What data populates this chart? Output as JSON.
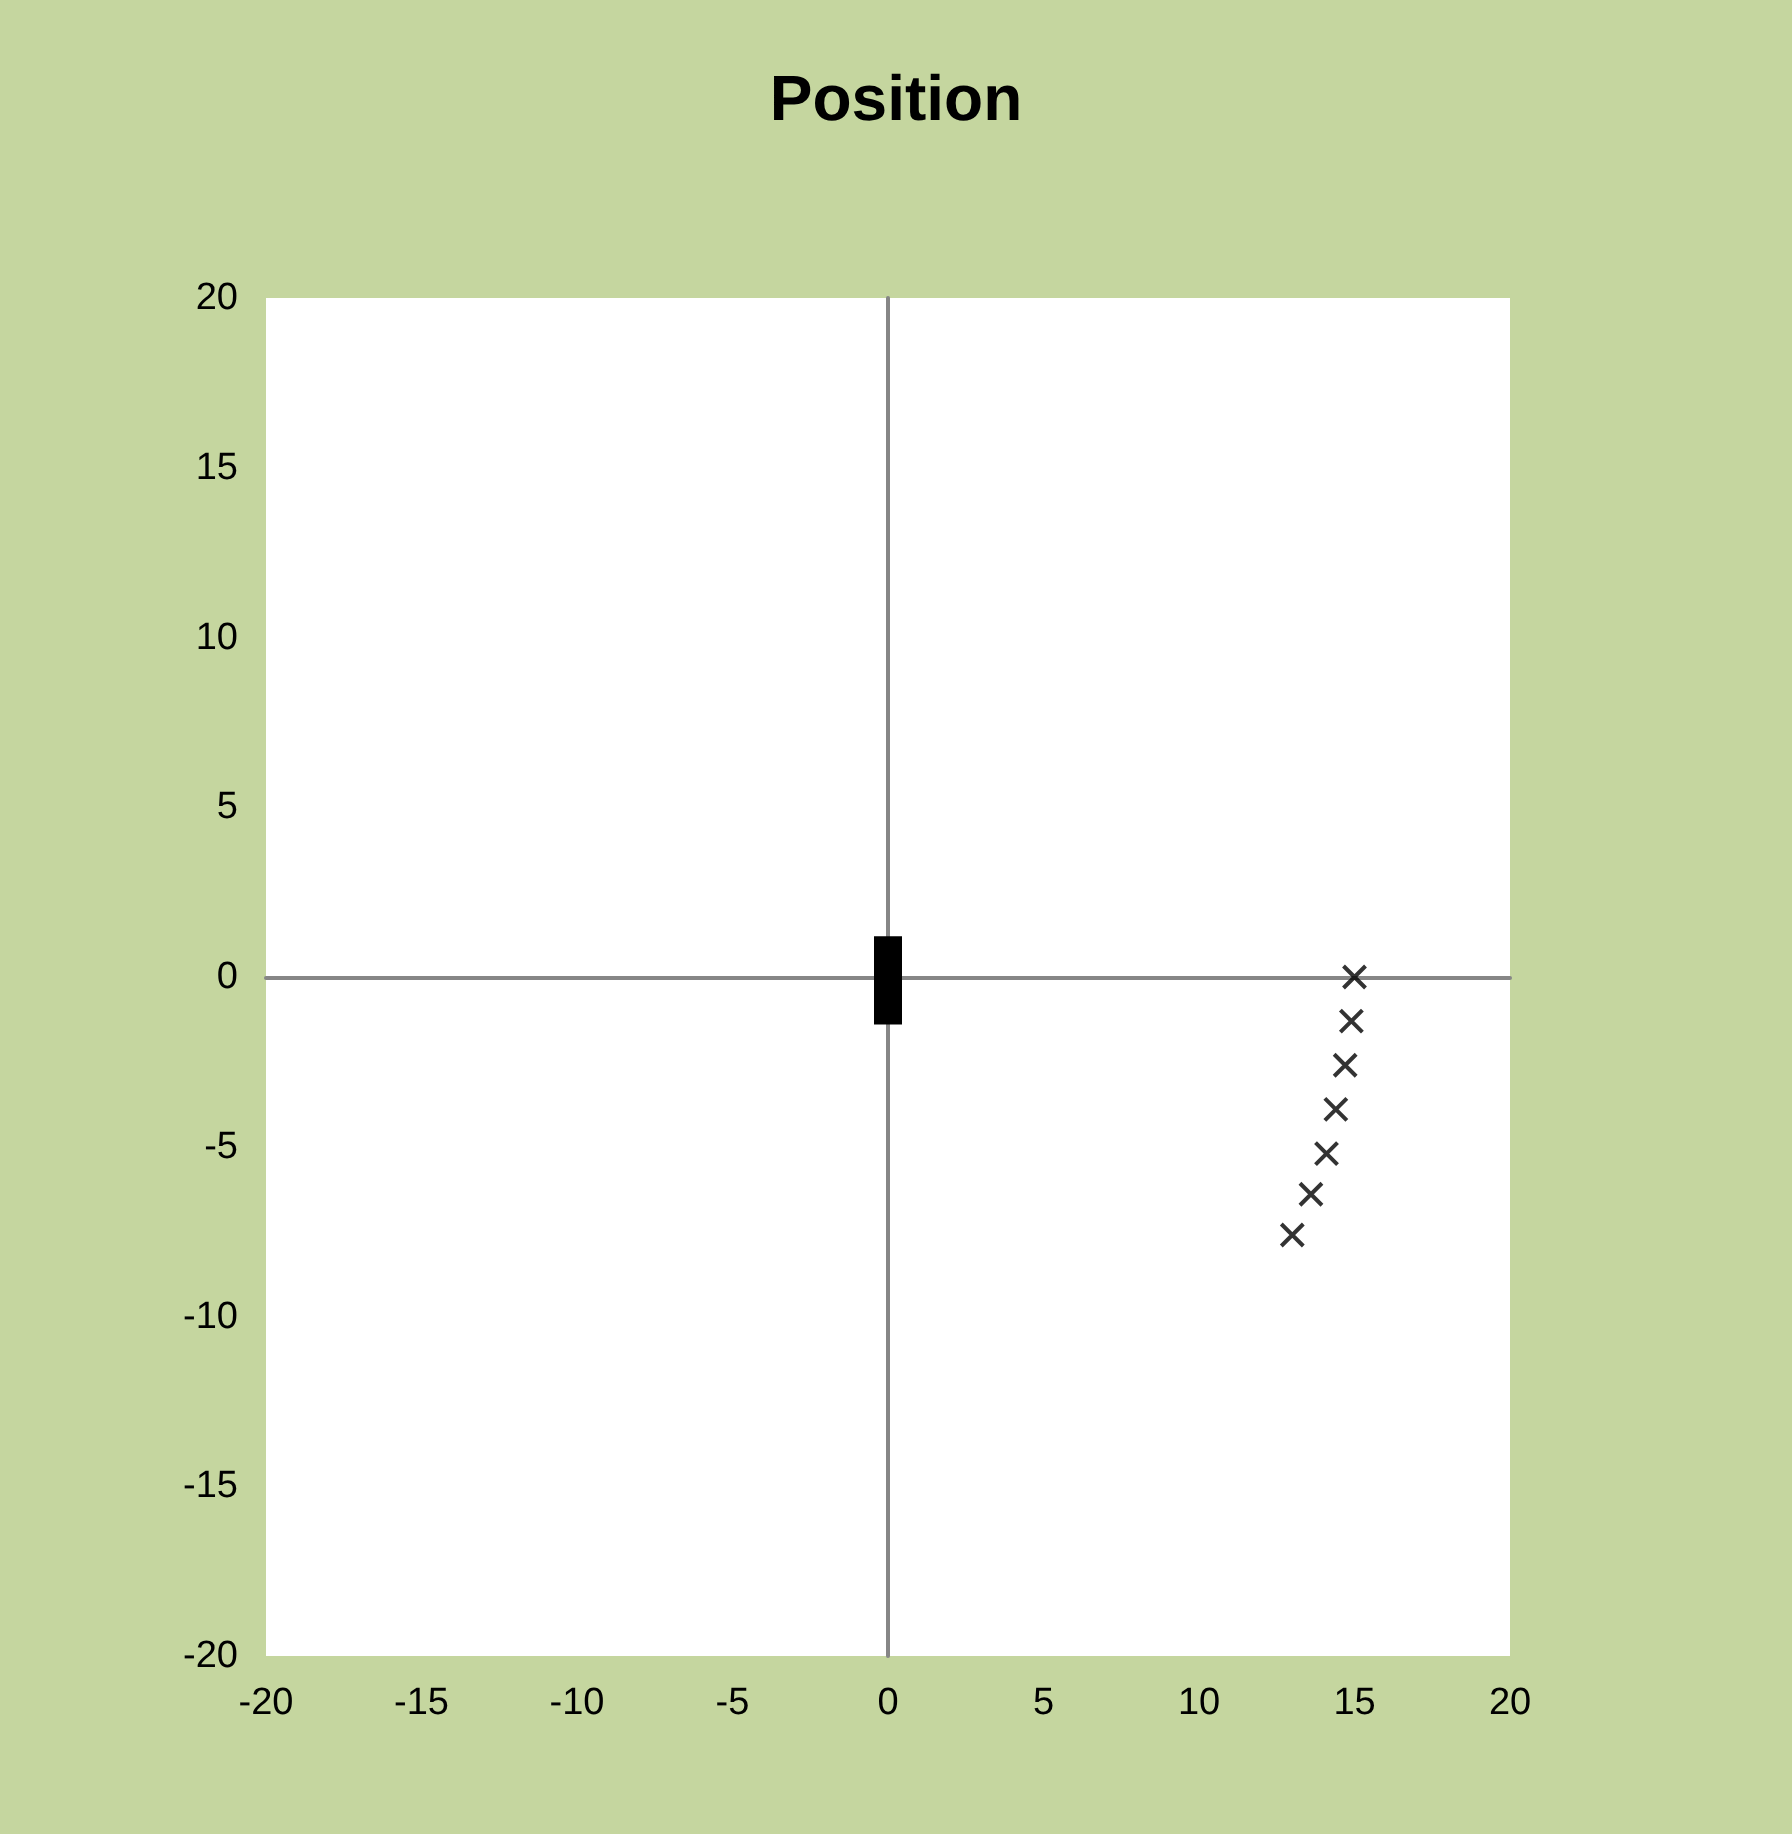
{
  "chart_data": {
    "type": "scatter",
    "title": "Position",
    "marker": "cross",
    "xlim": [
      -20,
      20
    ],
    "xticks": [
      -20,
      -15,
      -10,
      -5,
      0,
      5,
      10,
      15,
      20
    ],
    "ylim": [
      -20,
      20
    ],
    "yticks": [
      -20,
      -15,
      -10,
      -5,
      0,
      5,
      10,
      15,
      20
    ],
    "series": [
      {
        "type": "line",
        "color": "#000000",
        "x": [
          0,
          0
        ],
        "values": [
          1.2,
          -1.4
        ],
        "marker": "none"
      },
      {
        "color": "#000000",
        "x": [
          15.0,
          14.9,
          14.7,
          14.4,
          14.1,
          13.6,
          13.0
        ],
        "values": [
          0,
          -1.3,
          -2.6,
          -3.9,
          -5.2,
          -6.4,
          -7.6
        ]
      }
    ]
  }
}
